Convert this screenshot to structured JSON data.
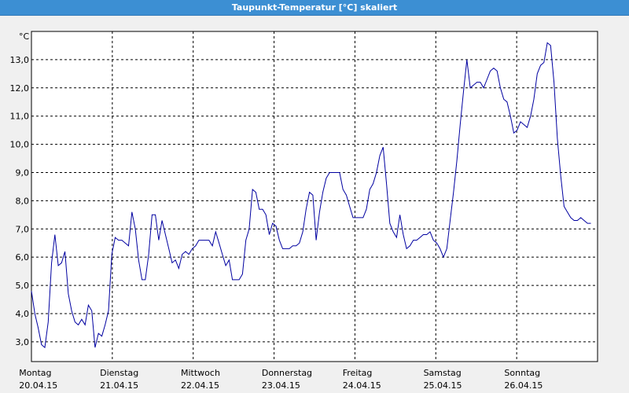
{
  "title": "Taupunkt-Temperatur [°C] skaliert",
  "chart_data": {
    "type": "line",
    "unit_label": "°C",
    "ylim": [
      2.3,
      14.0
    ],
    "yticks": [
      "3,0",
      "4,0",
      "5,0",
      "6,0",
      "7,0",
      "8,0",
      "9,0",
      "10,0",
      "11,0",
      "12,0",
      "13,0"
    ],
    "ytick_values": [
      3,
      4,
      5,
      6,
      7,
      8,
      9,
      10,
      11,
      12,
      13
    ],
    "x_days": [
      {
        "day": "Montag",
        "date": "20.04.15"
      },
      {
        "day": "Dienstag",
        "date": "21.04.15"
      },
      {
        "day": "Mittwoch",
        "date": "22.04.15"
      },
      {
        "day": "Donnerstag",
        "date": "23.04.15"
      },
      {
        "day": "Freitag",
        "date": "24.04.15"
      },
      {
        "day": "Samstag",
        "date": "25.04.15"
      },
      {
        "day": "Sonntag",
        "date": "26.04.15"
      }
    ],
    "grid": true,
    "color": "#0000a0",
    "x_hours": [
      0,
      1,
      2,
      3,
      4,
      5,
      6,
      7,
      8,
      9,
      10,
      11,
      12,
      13,
      14,
      15,
      16,
      17,
      18,
      19,
      20,
      21,
      22,
      23,
      24,
      25,
      26,
      27,
      28,
      29,
      30,
      31,
      32,
      33,
      34,
      35,
      36,
      37,
      38,
      39,
      40,
      41,
      42,
      43,
      44,
      45,
      46,
      47,
      48,
      49,
      50,
      51,
      52,
      53,
      54,
      55,
      56,
      57,
      58,
      59,
      60,
      61,
      62,
      63,
      64,
      65,
      66,
      67,
      68,
      69,
      70,
      71,
      72,
      73,
      74,
      75,
      76,
      77,
      78,
      79,
      80,
      81,
      82,
      83,
      84,
      85,
      86,
      87,
      88,
      89,
      90,
      91,
      92,
      93,
      94,
      95,
      96,
      97,
      98,
      99,
      100,
      101,
      102,
      103,
      104,
      105,
      106,
      107,
      108,
      109,
      110,
      111,
      112,
      113,
      114,
      115,
      116,
      117,
      118,
      119,
      120,
      121,
      122,
      123,
      124,
      125,
      126,
      127,
      128,
      129,
      130,
      131,
      132,
      133,
      134,
      135,
      136,
      137,
      138,
      139,
      140,
      141,
      142,
      143,
      144,
      145,
      146,
      147,
      148,
      149,
      150,
      151,
      152,
      153,
      154,
      155,
      156,
      157,
      158,
      159,
      160,
      161,
      162,
      163,
      164,
      165,
      166,
      167
    ],
    "values": [
      4.8,
      4.0,
      3.5,
      2.9,
      2.8,
      3.7,
      5.8,
      6.8,
      5.7,
      5.8,
      6.2,
      4.7,
      4.1,
      3.7,
      3.6,
      3.8,
      3.6,
      4.3,
      4.1,
      2.8,
      3.3,
      3.2,
      3.6,
      4.1,
      6.1,
      6.7,
      6.6,
      6.6,
      6.5,
      6.4,
      7.6,
      7.0,
      5.9,
      5.2,
      5.2,
      6.1,
      7.5,
      7.5,
      6.6,
      7.3,
      6.8,
      6.3,
      5.8,
      5.9,
      5.6,
      6.1,
      6.2,
      6.1,
      6.3,
      6.4,
      6.6,
      6.6,
      6.6,
      6.6,
      6.4,
      6.9,
      6.5,
      6.1,
      5.7,
      5.9,
      5.2,
      5.2,
      5.2,
      5.4,
      6.6,
      7.0,
      8.4,
      8.3,
      7.7,
      7.7,
      7.5,
      6.8,
      7.2,
      7.1,
      6.6,
      6.3,
      6.3,
      6.3,
      6.4,
      6.4,
      6.5,
      6.9,
      7.7,
      8.3,
      8.2,
      6.6,
      7.6,
      8.3,
      8.8,
      9.0,
      9.0,
      9.0,
      9.0,
      8.4,
      8.2,
      7.8,
      7.4,
      7.4,
      7.4,
      7.4,
      7.7,
      8.4,
      8.6,
      9.0,
      9.6,
      9.9,
      8.6,
      7.2,
      6.9,
      6.7,
      7.5,
      6.8,
      6.3,
      6.4,
      6.6,
      6.6,
      6.7,
      6.8,
      6.8,
      6.9,
      6.6,
      6.5,
      6.3,
      6.0,
      6.3,
      7.3,
      8.3,
      9.4,
      10.7,
      11.9,
      13.0,
      12.0,
      12.1,
      12.2,
      12.2,
      12.0,
      12.3,
      12.6,
      12.7,
      12.6,
      12.0,
      11.6,
      11.5,
      11.0,
      10.4,
      10.5,
      10.8,
      10.7,
      10.6,
      11.0,
      11.6,
      12.5,
      12.8,
      12.9,
      13.6,
      13.5,
      12.2,
      10.2,
      8.9,
      7.8,
      7.6,
      7.4,
      7.3,
      7.3,
      7.4,
      7.3,
      7.2,
      7.2
    ]
  }
}
